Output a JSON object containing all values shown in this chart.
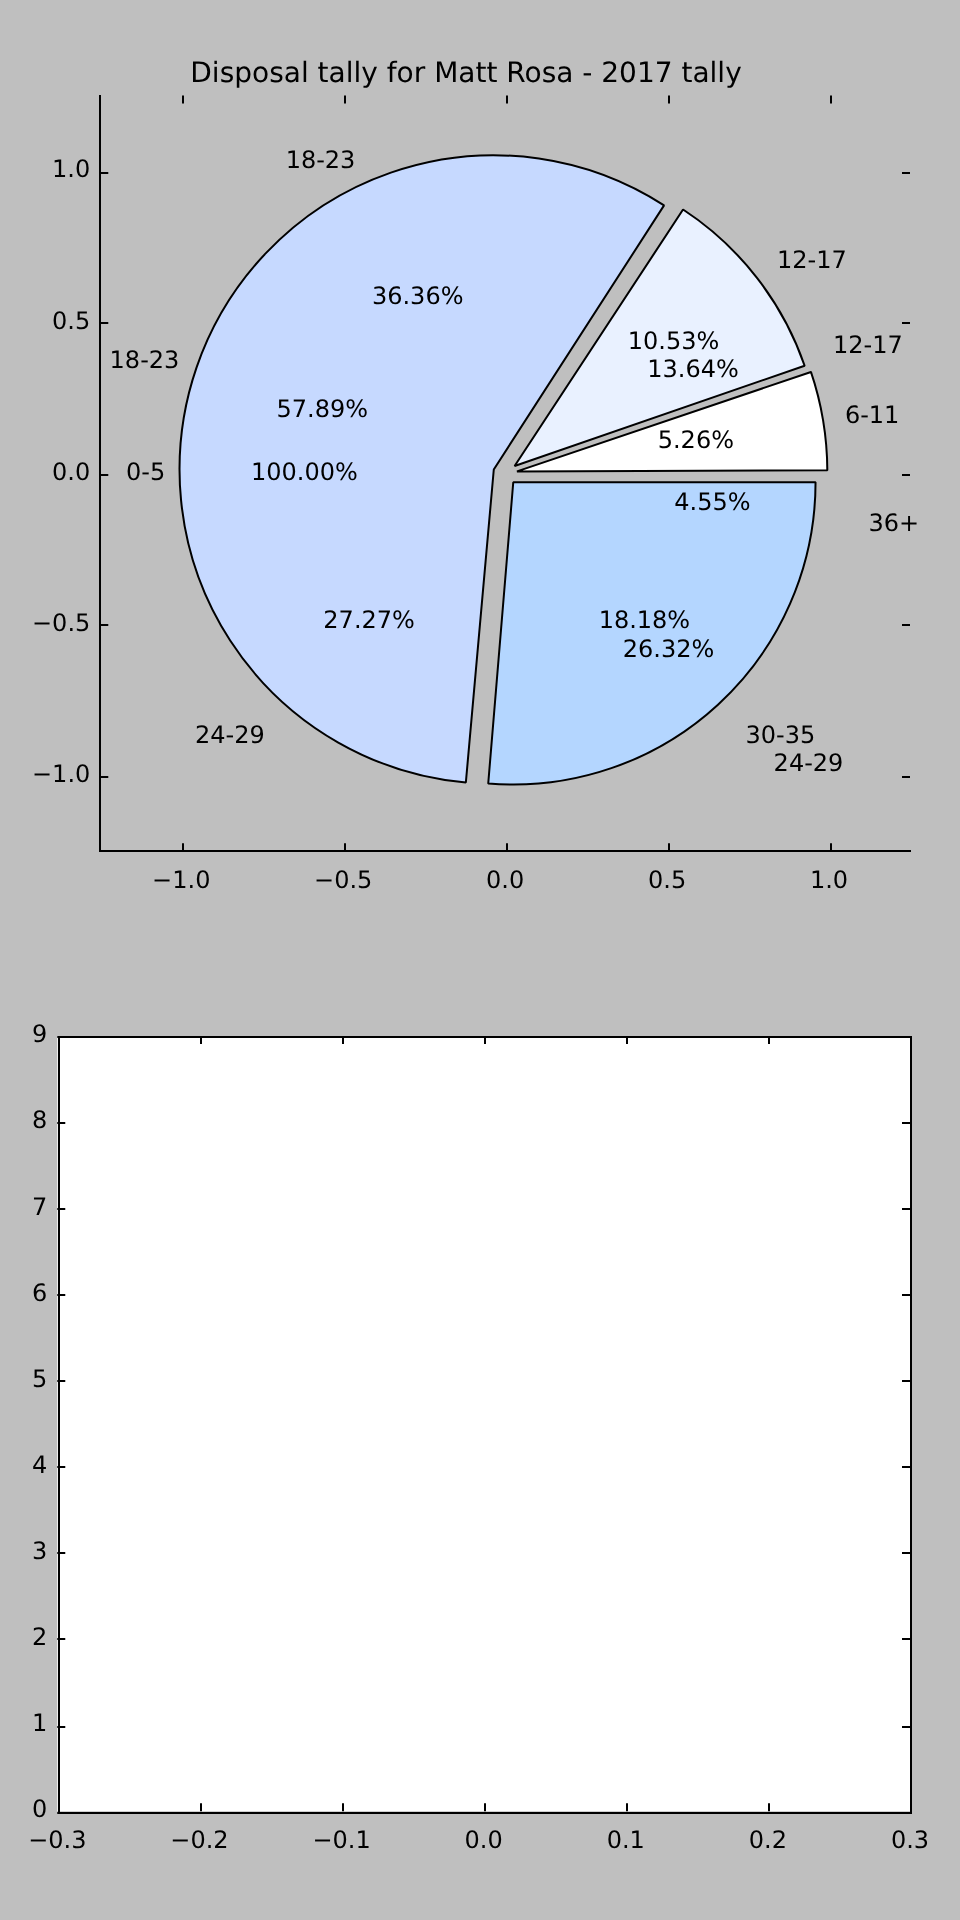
{
  "chart_data": [
    {
      "type": "scatter",
      "title": "Disposal tally for Matt Rosa - 2017 tally",
      "xlim": [
        -1.25,
        1.25
      ],
      "ylim": [
        -1.25,
        1.25
      ],
      "xticks": [
        {
          "value": -1,
          "label": "−1.0"
        },
        {
          "value": -0.5,
          "label": "−0.5"
        },
        {
          "value": 0,
          "label": "0.0"
        },
        {
          "value": 0.5,
          "label": "0.5"
        },
        {
          "value": 1,
          "label": "1.0"
        }
      ],
      "yticks": [
        {
          "value": -1,
          "label": "−1.0"
        },
        {
          "value": -0.5,
          "label": "−0.5"
        },
        {
          "value": 0,
          "label": "0.0"
        },
        {
          "value": 0.5,
          "label": "0.5"
        },
        {
          "value": 1,
          "label": "1.0"
        }
      ],
      "annotations": [
        "18-23",
        "36.36%",
        "12-17",
        "13.64%",
        "36+",
        "4.55%",
        "30-35",
        "18.18%",
        "24-29",
        "27.27%",
        "0-5",
        "100.00%"
      ]
    },
    {
      "type": "pie",
      "categories": [
        "24-29",
        "18-23",
        "12-17",
        "6-11"
      ],
      "values": [
        26.32,
        57.89,
        10.53,
        5.26
      ],
      "colors": [
        "#b4d6ff",
        "#c6d9ff",
        "#e9f1ff",
        "#ffffff"
      ],
      "value_labels": [
        "26.32%",
        "57.89%",
        "10.53%",
        "5.26%"
      ]
    },
    {
      "type": "scatter",
      "xlim": [
        -0.3,
        0.3
      ],
      "ylim": [
        0,
        9
      ],
      "xticks": [
        {
          "value": -0.3,
          "label": "−0.3"
        },
        {
          "value": -0.2,
          "label": "−0.2"
        },
        {
          "value": -0.1,
          "label": "−0.1"
        },
        {
          "value": 0,
          "label": "0.0"
        },
        0.1,
        0.2,
        0.3
      ],
      "yticks": [
        0,
        1,
        2,
        3,
        4,
        5,
        6,
        7,
        8,
        9
      ]
    }
  ]
}
